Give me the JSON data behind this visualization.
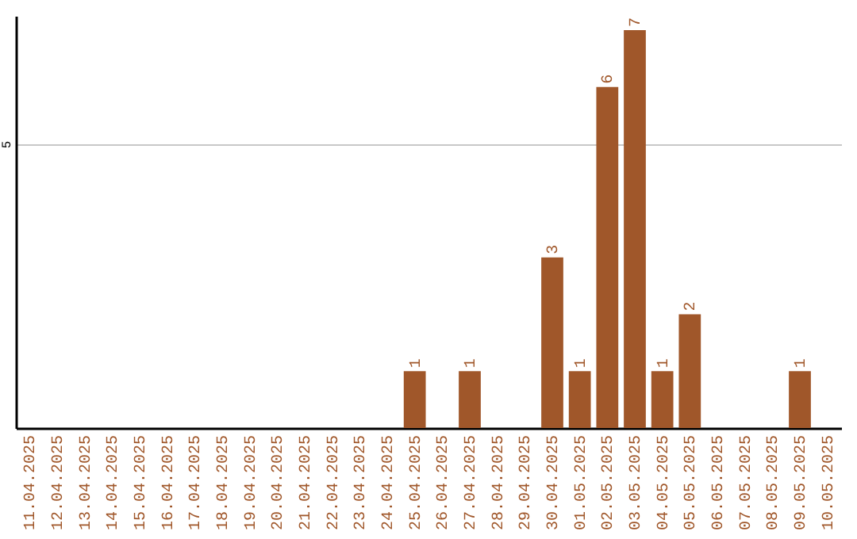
{
  "chart_data": {
    "type": "bar",
    "categories": [
      "11.04.2025",
      "12.04.2025",
      "13.04.2025",
      "14.04.2025",
      "15.04.2025",
      "16.04.2025",
      "17.04.2025",
      "18.04.2025",
      "19.04.2025",
      "20.04.2025",
      "21.04.2025",
      "22.04.2025",
      "23.04.2025",
      "24.04.2025",
      "25.04.2025",
      "26.04.2025",
      "27.04.2025",
      "28.04.2025",
      "29.04.2025",
      "30.04.2025",
      "01.05.2025",
      "02.05.2025",
      "03.05.2025",
      "04.05.2025",
      "05.05.2025",
      "06.05.2025",
      "07.05.2025",
      "08.05.2025",
      "09.05.2025",
      "10.05.2025"
    ],
    "values": [
      null,
      null,
      null,
      null,
      null,
      null,
      null,
      null,
      null,
      null,
      null,
      null,
      null,
      null,
      1,
      null,
      1,
      null,
      null,
      3,
      1,
      6,
      7,
      1,
      2,
      null,
      null,
      null,
      1,
      null
    ],
    "color": "#a0572a",
    "ylim": [
      0,
      7.25
    ],
    "yticks": [
      5
    ],
    "grid": "y",
    "data_labels": true
  }
}
